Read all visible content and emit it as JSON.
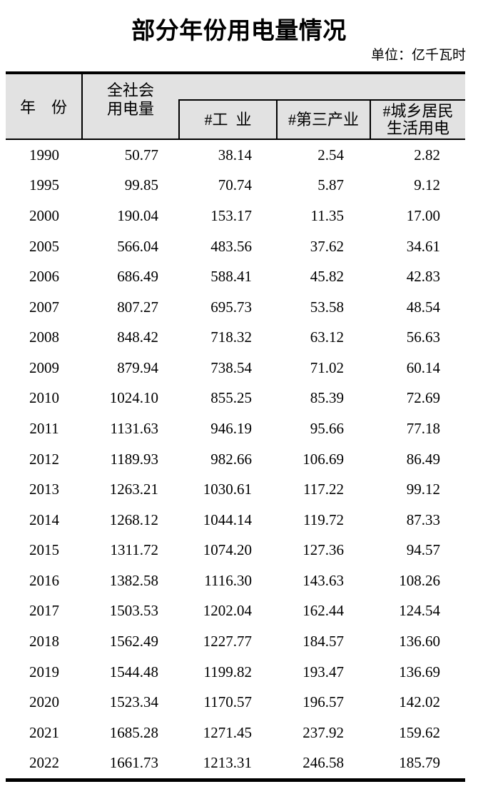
{
  "title": "部分年份用电量情况",
  "unit_label": "单位：亿千瓦时",
  "colors": {
    "header_bg": "#e2e2e2",
    "border": "#000000",
    "text": "#000000",
    "page_bg": "#ffffff"
  },
  "table": {
    "header": {
      "year": "年　份",
      "total_line1": "全社会",
      "total_line2": "用电量",
      "industry": "#工  业",
      "tertiary": "#第三产业",
      "residential_line1": "#城乡居民",
      "residential_line2": "生活用电"
    },
    "rows": [
      {
        "year": "1990",
        "total": "50.77",
        "industry": "38.14",
        "tertiary": "2.54",
        "residential": "2.82"
      },
      {
        "year": "1995",
        "total": "99.85",
        "industry": "70.74",
        "tertiary": "5.87",
        "residential": "9.12"
      },
      {
        "year": "2000",
        "total": "190.04",
        "industry": "153.17",
        "tertiary": "11.35",
        "residential": "17.00"
      },
      {
        "year": "2005",
        "total": "566.04",
        "industry": "483.56",
        "tertiary": "37.62",
        "residential": "34.61"
      },
      {
        "year": "2006",
        "total": "686.49",
        "industry": "588.41",
        "tertiary": "45.82",
        "residential": "42.83"
      },
      {
        "year": "2007",
        "total": "807.27",
        "industry": "695.73",
        "tertiary": "53.58",
        "residential": "48.54"
      },
      {
        "year": "2008",
        "total": "848.42",
        "industry": "718.32",
        "tertiary": "63.12",
        "residential": "56.63"
      },
      {
        "year": "2009",
        "total": "879.94",
        "industry": "738.54",
        "tertiary": "71.02",
        "residential": "60.14"
      },
      {
        "year": "2010",
        "total": "1024.10",
        "industry": "855.25",
        "tertiary": "85.39",
        "residential": "72.69"
      },
      {
        "year": "2011",
        "total": "1131.63",
        "industry": "946.19",
        "tertiary": "95.66",
        "residential": "77.18"
      },
      {
        "year": "2012",
        "total": "1189.93",
        "industry": "982.66",
        "tertiary": "106.69",
        "residential": "86.49"
      },
      {
        "year": "2013",
        "total": "1263.21",
        "industry": "1030.61",
        "tertiary": "117.22",
        "residential": "99.12"
      },
      {
        "year": "2014",
        "total": "1268.12",
        "industry": "1044.14",
        "tertiary": "119.72",
        "residential": "87.33"
      },
      {
        "year": "2015",
        "total": "1311.72",
        "industry": "1074.20",
        "tertiary": "127.36",
        "residential": "94.57"
      },
      {
        "year": "2016",
        "total": "1382.58",
        "industry": "1116.30",
        "tertiary": "143.63",
        "residential": "108.26"
      },
      {
        "year": "2017",
        "total": "1503.53",
        "industry": "1202.04",
        "tertiary": "162.44",
        "residential": "124.54"
      },
      {
        "year": "2018",
        "total": "1562.49",
        "industry": "1227.77",
        "tertiary": "184.57",
        "residential": "136.60"
      },
      {
        "year": "2019",
        "total": "1544.48",
        "industry": "1199.82",
        "tertiary": "193.47",
        "residential": "136.69"
      },
      {
        "year": "2020",
        "total": "1523.34",
        "industry": "1170.57",
        "tertiary": "196.57",
        "residential": "142.02"
      },
      {
        "year": "2021",
        "total": "1685.28",
        "industry": "1271.45",
        "tertiary": "237.92",
        "residential": "159.62"
      },
      {
        "year": "2022",
        "total": "1661.73",
        "industry": "1213.31",
        "tertiary": "246.58",
        "residential": "185.79"
      }
    ]
  }
}
